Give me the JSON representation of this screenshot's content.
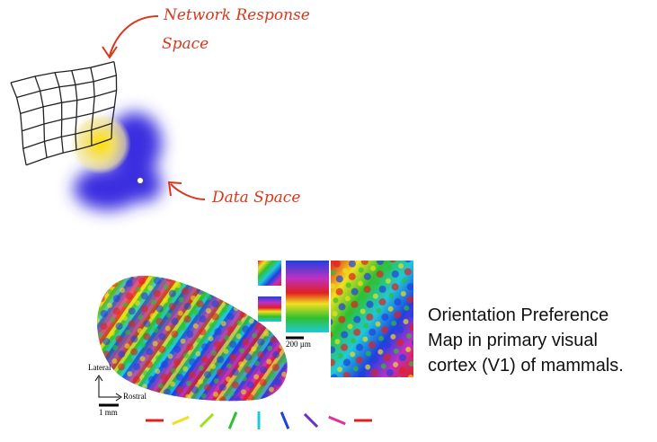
{
  "annotations": {
    "network_line1": "Network Response",
    "network_line2": "Space",
    "data_space": "Data Space"
  },
  "figure": {
    "lateral": "Lateral",
    "rostral": "Rostral",
    "scale_mm": "1 mm",
    "scale_um": "200 µm"
  },
  "caption": {
    "lines": [
      "Orientation Preference",
      "Map in primary visual",
      "cortex (V1) of mammals."
    ]
  }
}
